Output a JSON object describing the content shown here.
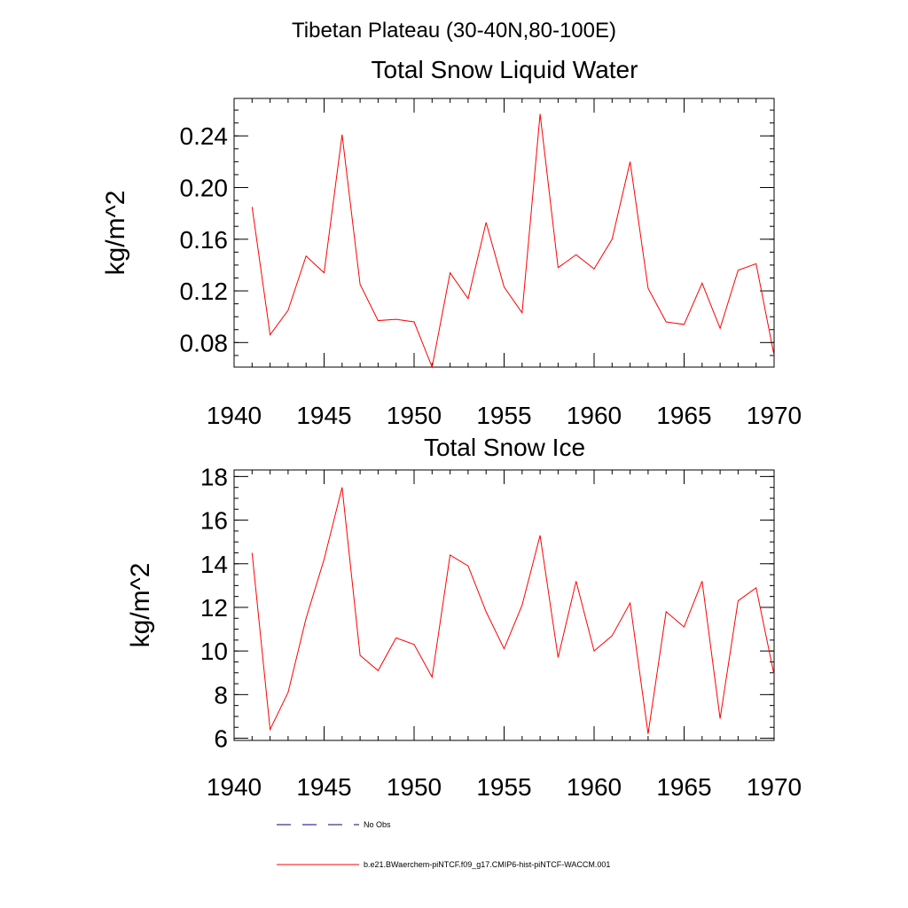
{
  "figure": {
    "suptitle": "Tibetan Plateau (30-40N,80-100E)"
  },
  "chart_data": [
    {
      "type": "line",
      "title": "Total Snow Liquid Water",
      "xlabel": "",
      "ylabel": "kg/m^2",
      "xlim": [
        1940,
        1970
      ],
      "ylim": [
        0.061,
        0.269
      ],
      "xticks": [
        "1940",
        "1945",
        "1950",
        "1955",
        "1960",
        "1965",
        "1970"
      ],
      "yticks": [
        "0.08",
        "0.12",
        "0.16",
        "0.20",
        "0.24"
      ],
      "grid": false,
      "series": [
        {
          "name": "b.e21.BWaerchem-piNTCF.f09_g17.CMIP6-hist-piNTCF-WACCM.001",
          "color": "#ff0000",
          "x": [
            1941,
            1942,
            1943,
            1944,
            1945,
            1946,
            1947,
            1948,
            1949,
            1950,
            1951,
            1952,
            1953,
            1954,
            1955,
            1956,
            1957,
            1958,
            1959,
            1960,
            1961,
            1962,
            1963,
            1964,
            1965,
            1966,
            1967,
            1968,
            1969,
            1970
          ],
          "values": [
            0.185,
            0.086,
            0.105,
            0.147,
            0.134,
            0.241,
            0.125,
            0.097,
            0.098,
            0.096,
            0.061,
            0.134,
            0.114,
            0.173,
            0.123,
            0.103,
            0.257,
            0.138,
            0.148,
            0.137,
            0.16,
            0.22,
            0.122,
            0.096,
            0.094,
            0.126,
            0.091,
            0.136,
            0.141,
            0.07
          ]
        }
      ]
    },
    {
      "type": "line",
      "title": "Total Snow Ice",
      "xlabel": "",
      "ylabel": "kg/m^2",
      "xlim": [
        1940,
        1970
      ],
      "ylim": [
        5.9,
        18.3
      ],
      "xticks": [
        "1940",
        "1945",
        "1950",
        "1955",
        "1960",
        "1965",
        "1970"
      ],
      "yticks": [
        "6",
        "8",
        "10",
        "12",
        "14",
        "16",
        "18"
      ],
      "grid": false,
      "series": [
        {
          "name": "b.e21.BWaerchem-piNTCF.f09_g17.CMIP6-hist-piNTCF-WACCM.001",
          "color": "#ff0000",
          "x": [
            1941,
            1942,
            1943,
            1944,
            1945,
            1946,
            1947,
            1948,
            1949,
            1950,
            1951,
            1952,
            1953,
            1954,
            1955,
            1956,
            1957,
            1958,
            1959,
            1960,
            1961,
            1962,
            1963,
            1964,
            1965,
            1966,
            1967,
            1968,
            1969,
            1970
          ],
          "values": [
            14.5,
            6.4,
            8.1,
            11.5,
            14.2,
            17.5,
            9.8,
            9.1,
            10.6,
            10.3,
            8.8,
            14.4,
            13.9,
            11.8,
            10.1,
            12.1,
            15.3,
            9.7,
            13.2,
            10.0,
            10.7,
            12.2,
            6.2,
            11.8,
            11.1,
            13.2,
            6.9,
            12.3,
            12.9,
            8.9
          ]
        }
      ]
    }
  ],
  "legend": {
    "placement": "bottom",
    "items": [
      {
        "label": "No Obs",
        "color": "#00007f",
        "style": "dashed"
      },
      {
        "label": "b.e21.BWaerchem-piNTCF.f09_g17.CMIP6-hist-piNTCF-WACCM.001",
        "color": "#ff0000",
        "style": "solid"
      }
    ]
  }
}
